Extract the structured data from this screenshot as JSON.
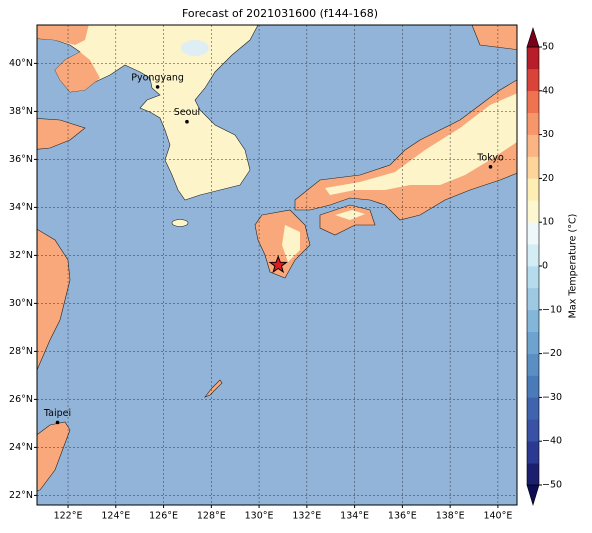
{
  "title": "Forecast of 2021031600 (f144-168)",
  "map": {
    "xlim": [
      120.7,
      140.8
    ],
    "ylim": [
      21.6,
      41.6
    ],
    "xticks": [
      {
        "value": 122,
        "label": "122°E"
      },
      {
        "value": 124,
        "label": "124°E"
      },
      {
        "value": 126,
        "label": "126°E"
      },
      {
        "value": 128,
        "label": "128°E"
      },
      {
        "value": 130,
        "label": "130°E"
      },
      {
        "value": 132,
        "label": "132°E"
      },
      {
        "value": 134,
        "label": "134°E"
      },
      {
        "value": 136,
        "label": "136°E"
      },
      {
        "value": 138,
        "label": "138°E"
      },
      {
        "value": 140,
        "label": "140°E"
      }
    ],
    "yticks": [
      {
        "value": 22,
        "label": "22°N"
      },
      {
        "value": 24,
        "label": "24°N"
      },
      {
        "value": 26,
        "label": "26°N"
      },
      {
        "value": 28,
        "label": "28°N"
      },
      {
        "value": 30,
        "label": "30°N"
      },
      {
        "value": 32,
        "label": "32°N"
      },
      {
        "value": 34,
        "label": "34°N"
      },
      {
        "value": 36,
        "label": "36°N"
      },
      {
        "value": 38,
        "label": "38°N"
      },
      {
        "value": 40,
        "label": "40°N"
      }
    ],
    "grid": true
  },
  "cities": [
    {
      "name": "Pyongyang",
      "lon": 125.75,
      "lat": 39.02
    },
    {
      "name": "Seoul",
      "lon": 126.98,
      "lat": 37.57
    },
    {
      "name": "Tokyo",
      "lon": 139.69,
      "lat": 35.69
    },
    {
      "name": "Taipei",
      "lon": 121.56,
      "lat": 25.04
    }
  ],
  "marker": {
    "lon": 130.8,
    "lat": 31.6,
    "color": "#e31a1c"
  },
  "colorbar": {
    "label": "Max Temperature (°C)",
    "lim": [
      -50,
      50
    ],
    "ticks": [
      {
        "value": -50,
        "label": "−50"
      },
      {
        "value": -40,
        "label": "−40"
      },
      {
        "value": -30,
        "label": "−30"
      },
      {
        "value": -20,
        "label": "−20"
      },
      {
        "value": -10,
        "label": "−10"
      },
      0,
      10,
      20,
      30,
      40,
      50
    ],
    "colors": [
      "#1c1f6e",
      "#2b3990",
      "#3a52a4",
      "#3f64ad",
      "#4a7ab8",
      "#5b8fc4",
      "#6ea3cf",
      "#84b6da",
      "#9dc9e3",
      "#b6dbec",
      "#d4ecf4",
      "#eef8fa",
      "#fdf7cf",
      "#fdeeb4",
      "#fdd49a",
      "#fbb585",
      "#f7966a",
      "#ef7350",
      "#d8443a",
      "#b81e2a"
    ],
    "under": "#0d0d55",
    "over": "#7a0019"
  }
}
